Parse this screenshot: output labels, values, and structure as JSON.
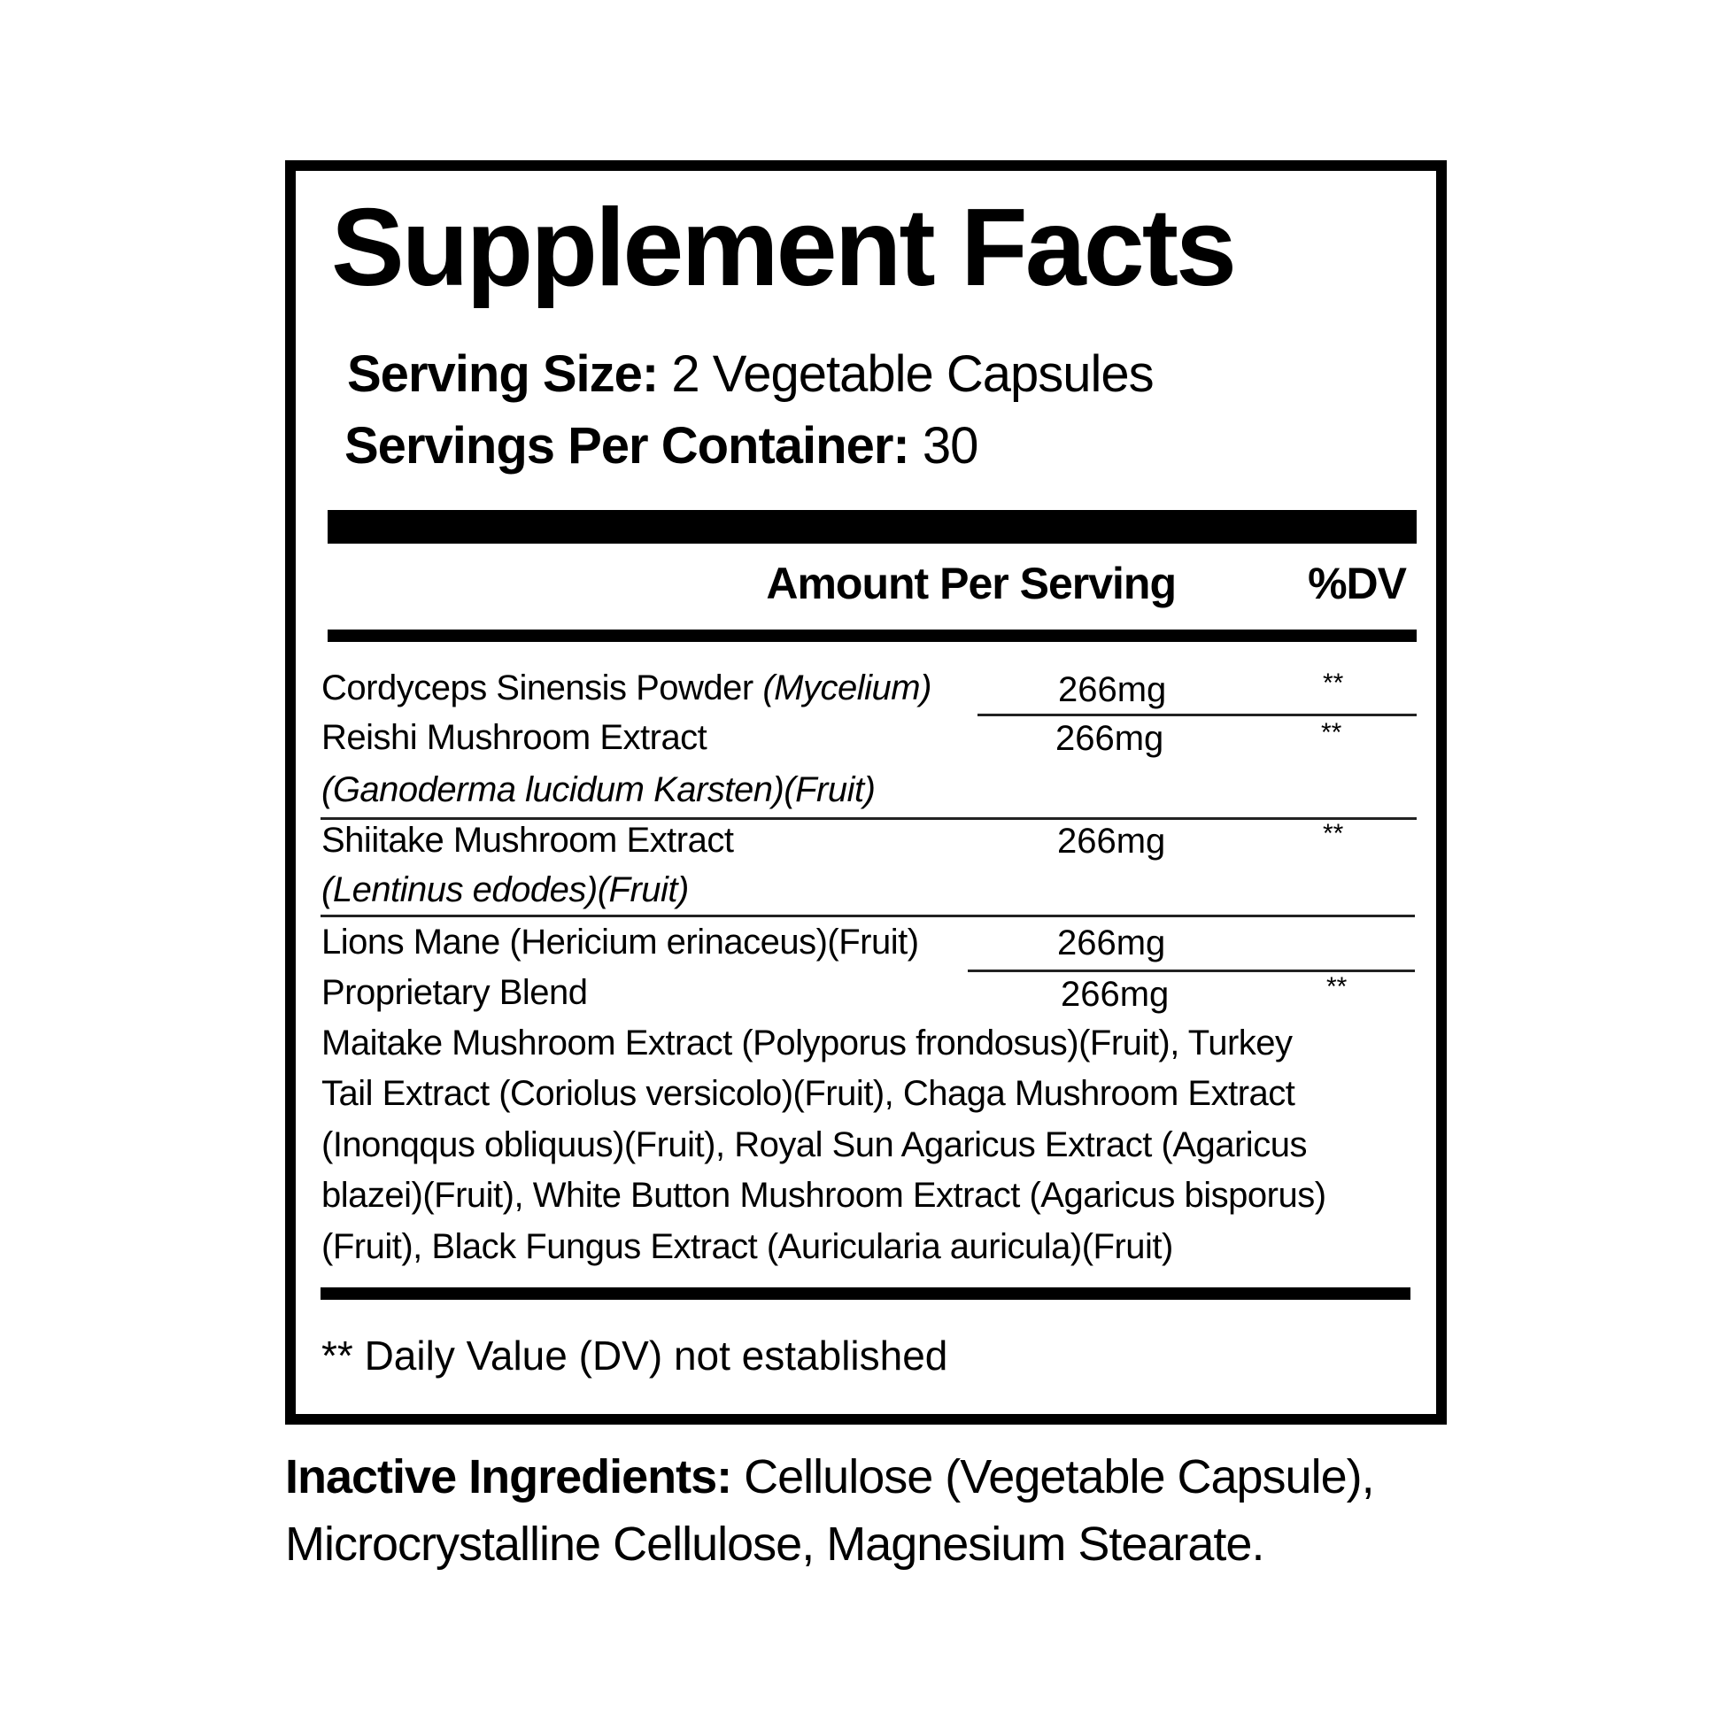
{
  "title": "Supplement Facts",
  "serving_size": {
    "label": "Serving Size:",
    "value": "2 Vegetable Capsules"
  },
  "servings_per_container": {
    "label": "Servings Per Container:",
    "value": "30"
  },
  "header": {
    "amount": "Amount Per Serving",
    "dv": "%DV"
  },
  "rows": [
    {
      "name": "Cordyceps Sinensis Powder",
      "name_italic": "(Mycelium)",
      "amount": "266mg",
      "dv": "**"
    },
    {
      "name": "Reishi Mushroom Extract",
      "sub_italic": "(Ganoderma lucidum Karsten)(Fruit)",
      "amount": "266mg",
      "dv": "**"
    },
    {
      "name": "Shiitake Mushroom Extract",
      "sub_italic": "(Lentinus edodes)(Fruit)",
      "amount": "266mg",
      "dv": "**"
    },
    {
      "name": "Lions Mane (Hericium erinaceus)(Fruit)",
      "amount": "266mg",
      "dv": ""
    },
    {
      "name": "Proprietary Blend",
      "amount": "266mg",
      "dv": "**"
    }
  ],
  "blend_lines": [
    "Maitake Mushroom Extract (Polyporus frondosus)(Fruit), Turkey",
    "Tail Extract (Coriolus versicolo)(Fruit), Chaga Mushroom Extract",
    "(Inonqqus obliquus)(Fruit), Royal Sun Agaricus Extract (Agaricus",
    "blazei)(Fruit), White Button Mushroom Extract (Agaricus bisporus)",
    "(Fruit), Black Fungus Extract (Auricularia auricula)(Fruit)"
  ],
  "footnote": "** Daily Value (DV) not established",
  "inactive": {
    "label": "Inactive Ingredients:",
    "line1": "Cellulose (Vegetable Capsule),",
    "line2": "Microcrystalline Cellulose, Magnesium Stearate."
  }
}
